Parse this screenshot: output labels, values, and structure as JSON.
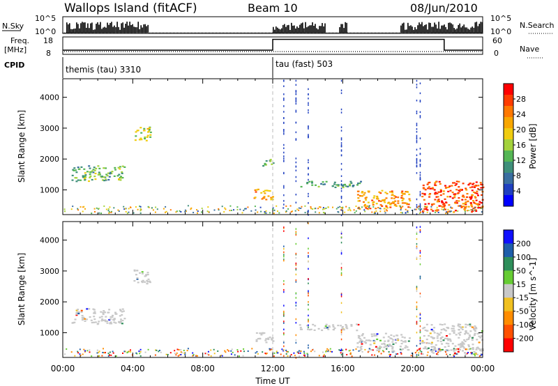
{
  "header": {
    "station": "Wallops Island (fitACF)",
    "beam": "Beam 10",
    "date": "08/Jun/2010"
  },
  "labels": {
    "nsky": "N.Sky",
    "nsearch": "N.Search",
    "nave": "Nave",
    "freq_line1": "Freq.",
    "freq_line2": "[MHz]",
    "cpid": "CPID"
  },
  "ticks": {
    "nsky_hi": "10^5",
    "nsky_lo": "10^0",
    "freq_hi": "18",
    "freq_lo": "8",
    "nave_hi": "60",
    "nave_lo": "0"
  },
  "cpid_segments": [
    {
      "label": "themis (tau) 3310",
      "start_hour": 0
    },
    {
      "label": "tau (fast) 503",
      "start_hour": 12
    }
  ],
  "chart_data": [
    {
      "type": "heatmap",
      "title": "Power",
      "xlabel": "",
      "ylabel": "Slant Range [km]",
      "xlim": [
        0,
        24
      ],
      "ylim": [
        200,
        4600
      ],
      "xticks": [
        "00:00",
        "04:00",
        "08:00",
        "12:00",
        "16:00",
        "20:00",
        "00:00"
      ],
      "yticks": [
        1000,
        2000,
        3000,
        4000
      ],
      "colorbar": {
        "label": "Power [dB]",
        "ticks": [
          4,
          8,
          12,
          16,
          20,
          24,
          28
        ],
        "range": [
          0,
          32
        ],
        "colors": [
          "#0000ff",
          "#2040c0",
          "#3a6ea0",
          "#3f8f7a",
          "#55b655",
          "#a4d23c",
          "#f0cc10",
          "#f8a600",
          "#ff7800",
          "#ff3c00",
          "#ff0000"
        ]
      },
      "regions": [
        {
          "t0": 0.5,
          "t1": 3.5,
          "r0": 1300,
          "r1": 1800,
          "level": 13
        },
        {
          "t0": 4.0,
          "t1": 5.0,
          "r0": 2600,
          "r1": 3050,
          "level": 17
        },
        {
          "t0": 10.9,
          "t1": 12.0,
          "r0": 700,
          "r1": 1050,
          "level": 22
        },
        {
          "t0": 11.4,
          "t1": 12.0,
          "r0": 1800,
          "r1": 2100,
          "level": 12
        },
        {
          "t0": 13.5,
          "t1": 17.0,
          "r0": 1100,
          "r1": 1300,
          "level": 12
        },
        {
          "t0": 16.8,
          "t1": 19.8,
          "r0": 400,
          "r1": 1000,
          "level": 23
        },
        {
          "t0": 20.5,
          "t1": 24.0,
          "r0": 300,
          "r1": 1300,
          "level": 27
        }
      ]
    },
    {
      "type": "heatmap",
      "title": "Velocity",
      "xlabel": "Time UT",
      "ylabel": "Slant Range [km]",
      "xlim": [
        0,
        24
      ],
      "ylim": [
        200,
        4600
      ],
      "xticks": [
        "00:00",
        "04:00",
        "08:00",
        "12:00",
        "16:00",
        "20:00",
        "00:00"
      ],
      "yticks": [
        1000,
        2000,
        3000,
        4000
      ],
      "colorbar": {
        "label": "Velocity [m s^-1]",
        "ticks": [
          "200",
          "100",
          "50",
          "15",
          "-15",
          "-50",
          "-100",
          "-200"
        ],
        "colors": [
          "#1010ff",
          "#1e5eaa",
          "#2e8e5a",
          "#66cc33",
          "#c8c8c8",
          "#f0c020",
          "#ff8c00",
          "#ff5000",
          "#ff0000"
        ]
      },
      "regions": [
        {
          "t0": 0.5,
          "t1": 3.5,
          "r0": 1300,
          "r1": 1800,
          "level": 0
        },
        {
          "t0": 4.0,
          "t1": 5.0,
          "r0": 2600,
          "r1": 3050,
          "level": 0
        },
        {
          "t0": 11.0,
          "t1": 12.0,
          "r0": 700,
          "r1": 1050,
          "level": 0
        },
        {
          "t0": 13.5,
          "t1": 17.0,
          "r0": 1100,
          "r1": 1300,
          "level": 0
        },
        {
          "t0": 16.8,
          "t1": 19.8,
          "r0": 400,
          "r1": 1000,
          "level": 0
        },
        {
          "t0": 20.5,
          "t1": 24.0,
          "r0": 300,
          "r1": 1300,
          "level": 0
        }
      ]
    }
  ]
}
